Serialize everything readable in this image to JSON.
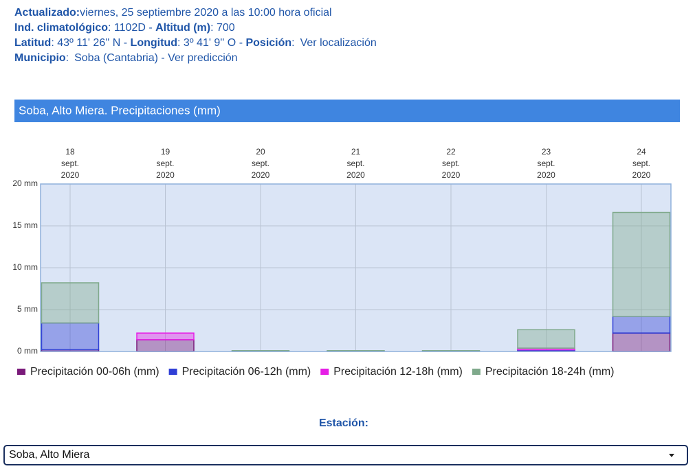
{
  "info": {
    "lines": [
      [
        {
          "label": "Actualizado:",
          "value": "viernes, 25 septiembre 2020 a las 10:00 hora oficial"
        }
      ],
      [
        {
          "label": "Ind. climatológico",
          "value": ": 1102D -"
        },
        {
          "label": "Altitud (m)",
          "value": ": 700"
        }
      ],
      [
        {
          "label": "Latitud",
          "value": ": 43º 11' 26'' N -"
        },
        {
          "label": "Longitud",
          "value": ": 3º 41' 9'' O -"
        },
        {
          "label": "Posición",
          "value": ":",
          "link": "Ver localización"
        }
      ],
      [
        {
          "label": "Municipio",
          "value": ":",
          "link": "Soba (Cantabria) - Ver predicción"
        }
      ]
    ]
  },
  "chart_data": {
    "type": "stacked-bar",
    "title": "Soba, Alto Miera. Precipitaciones (mm)",
    "categories": [
      "18 sept. 2020",
      "19 sept. 2020",
      "20 sept. 2020",
      "21 sept. 2020",
      "22 sept. 2020",
      "23 sept. 2020",
      "24 sept. 2020"
    ],
    "series": [
      {
        "name": "Precipitación 00-06h (mm)",
        "color": "#7a1a7a",
        "values": [
          0.2,
          1.4,
          0,
          0,
          0,
          0.1,
          2.2
        ]
      },
      {
        "name": "Precipitación 06-12h (mm)",
        "color": "#2f3fd6",
        "values": [
          3.2,
          0,
          0,
          0,
          0,
          0.1,
          2.0
        ]
      },
      {
        "name": "Precipitación 12-18h (mm)",
        "color": "#e61ee6",
        "values": [
          0,
          0.8,
          0,
          0,
          0,
          0.2,
          0
        ]
      },
      {
        "name": "Precipitación 18-24h (mm)",
        "color": "#7fa98b",
        "values": [
          4.8,
          0,
          0.1,
          0.1,
          0.1,
          2.2,
          12.4
        ]
      }
    ],
    "ylim": [
      0,
      20
    ],
    "yticks": [
      {
        "value": 0,
        "label": "0 mm"
      },
      {
        "value": 5,
        "label": "5 mm"
      },
      {
        "value": 10,
        "label": "10 mm"
      },
      {
        "value": 15,
        "label": "15 mm"
      },
      {
        "value": 20,
        "label": "20 mm"
      }
    ],
    "grid": true
  },
  "station": {
    "label": "Estación:",
    "selected": "Soba, Alto Miera"
  }
}
